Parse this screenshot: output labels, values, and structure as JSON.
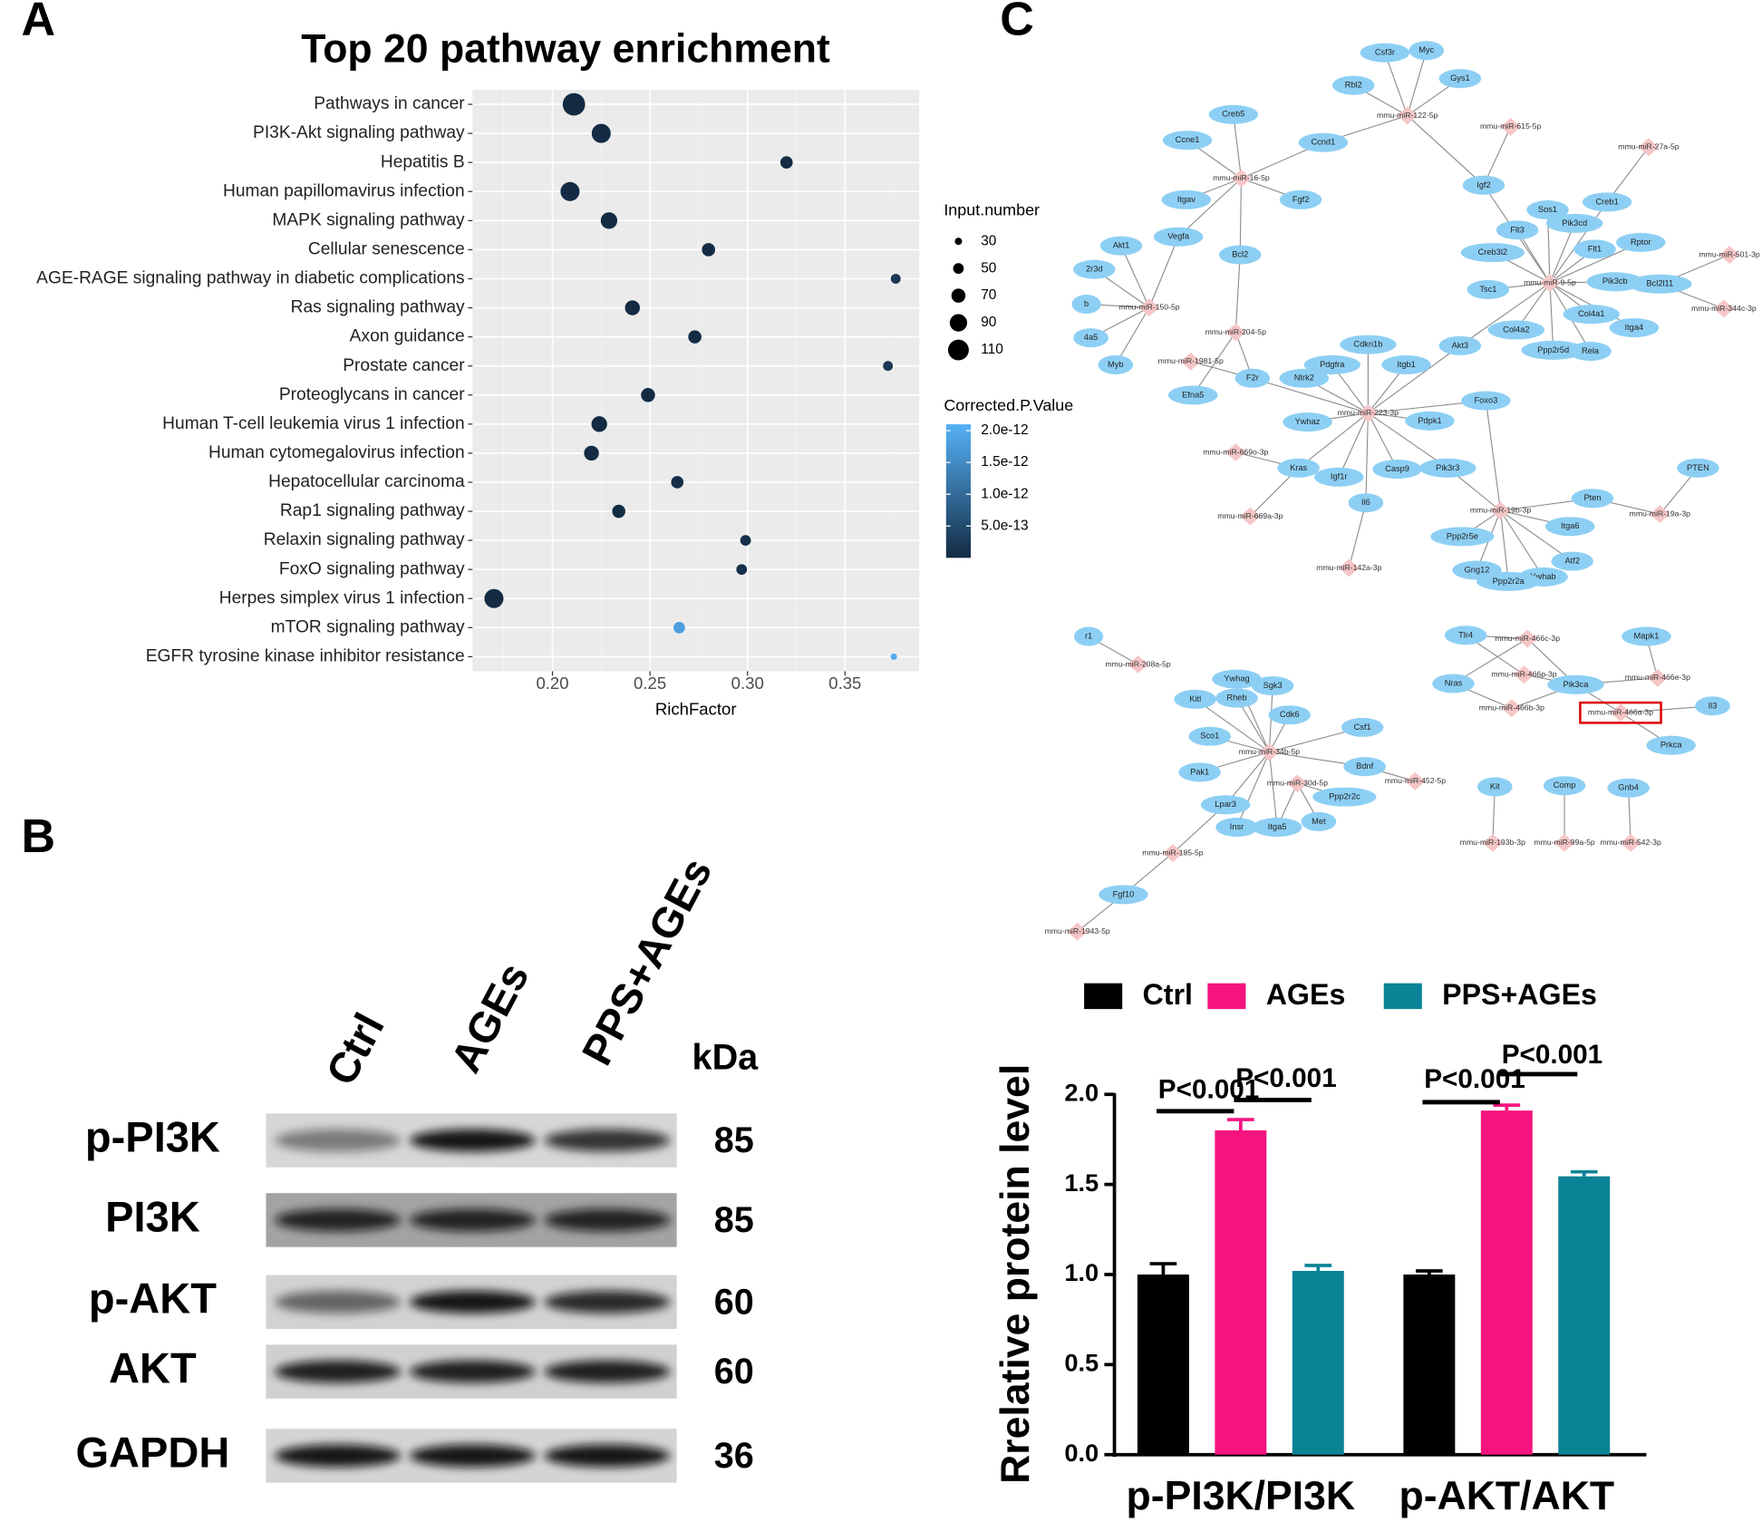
{
  "panel_labels": [
    "A",
    "B",
    "C"
  ],
  "chart_data": [
    {
      "type": "dot",
      "title": "Top 20 pathway enrichment",
      "categories": [
        "Pathways in cancer",
        "PI3K-Akt signaling pathway",
        "Hepatitis B",
        "Human papillomavirus infection",
        "MAPK signaling pathway",
        "Cellular senescence",
        "AGE-RAGE signaling pathway in diabetic complications",
        "Ras signaling pathway",
        "Axon guidance",
        "Prostate cancer",
        "Proteoglycans in cancer",
        "Human T-cell leukemia virus 1 infection",
        "Human cytomegalovirus infection",
        "Hepatocellular carcinoma",
        "Rap1 signaling pathway",
        "Relaxin signaling pathway",
        "FoxO signaling pathway",
        "Herpes simplex virus 1 infection",
        "mTOR signaling pathway",
        "EGFR tyrosine kinase inhibitor resistance"
      ],
      "values": [
        0.211,
        0.225,
        0.32,
        0.209,
        0.229,
        0.28,
        0.376,
        0.241,
        0.273,
        0.372,
        0.249,
        0.224,
        0.22,
        0.264,
        0.234,
        0.299,
        0.297,
        0.17,
        0.265,
        0.375
      ],
      "sizes": [
        120,
        100,
        60,
        100,
        85,
        65,
        45,
        75,
        65,
        45,
        70,
        80,
        75,
        60,
        65,
        50,
        50,
        100,
        55,
        25
      ],
      "color_values": [
        1e-20,
        1e-18,
        1e-16,
        1e-17,
        1e-16,
        1e-15,
        2e-13,
        1e-15,
        1e-14,
        2e-13,
        1e-14,
        1e-15,
        1e-15,
        5e-14,
        1e-14,
        8e-14,
        8e-14,
        1e-15,
        1.8e-12,
        2e-12
      ],
      "x_label": "RichFactor",
      "xlim": [
        0.159,
        0.388
      ],
      "xticks": [
        {
          "value": 0.2,
          "label": "0.20"
        },
        0.25,
        {
          "value": 0.3,
          "label": "0.30"
        },
        0.35
      ],
      "grid": true,
      "size_legend": {
        "title": "Input.number",
        "values": [
          30,
          50,
          70,
          90,
          110
        ]
      },
      "color_legend": {
        "title": "Corrected.P.Value",
        "lim": [
          0,
          2.1e-12
        ],
        "ticks": [
          {
            "value": 5e-13,
            "label": "5.0e-13"
          },
          {
            "value": 1e-12,
            "label": "1.0e-12"
          },
          {
            "value": 1.5e-12,
            "label": "1.5e-12"
          },
          {
            "value": 2e-12,
            "label": "2.0e-12"
          }
        ],
        "colors": [
          "#132b43",
          "#56b1f7"
        ]
      }
    },
    {
      "type": "bar",
      "y_label": "Rrelative protein level",
      "categories": [
        "p-PI3K/PI3K",
        "p-AKT/AKT"
      ],
      "series": [
        {
          "name": "Ctrl",
          "color": "#000000",
          "values": [
            1.0,
            1.0
          ],
          "errors": [
            0.06,
            0.02
          ]
        },
        {
          "name": "AGEs",
          "color": "#f5147f",
          "values": [
            1.8,
            1.91
          ],
          "errors": [
            0.06,
            0.03
          ]
        },
        {
          "name": "PPS+AGEs",
          "color": "#0b8396",
          "values": [
            1.02,
            1.545
          ],
          "errors": [
            0.03,
            0.025
          ]
        }
      ],
      "ylim": [
        0,
        2.0
      ],
      "yticks": [
        {
          "value": 0,
          "label": "0.0"
        },
        0.5,
        {
          "value": 1,
          "label": "1.0"
        },
        1.5,
        {
          "value": 2,
          "label": "2.0"
        }
      ],
      "annotations": [
        "P<0.001",
        "P<0.001",
        "P<0.001",
        "P<0.001"
      ]
    }
  ],
  "western_blot": {
    "lanes": [
      "Ctrl",
      "AGEs",
      "PPS+AGEs"
    ],
    "unit": "kDa",
    "rows": [
      {
        "label": "p-PI3K",
        "kda": 85
      },
      {
        "label": "PI3K",
        "kda": 85
      },
      {
        "label": "p-AKT",
        "kda": 60
      },
      {
        "label": "AKT",
        "kda": 60
      },
      {
        "label": "GAPDH",
        "kda": 36
      }
    ]
  },
  "network": {
    "nodes": [
      "Csf3r",
      "Myc",
      "Rbl2",
      "Gys1",
      "mmu-miR-122-5p",
      "mmu-miR-615-5p",
      "mmu-miR-27a-5p",
      "Creb5",
      "Ccne1",
      "Ccnd1",
      "mmu-miR-16-5p",
      "Itgav",
      "Fgf2",
      "Igf2",
      "Creb1",
      "Sos1",
      "Pik3cd",
      "Flt3",
      "Vegfa",
      "Bcl2",
      "Flt1",
      "Rptor",
      "mmu-miR-501-3p",
      "Akt1",
      "Creb3l2",
      "2r3d",
      "mmu-miR-9-5p",
      "Pik3cb",
      "Bcl2l11",
      "Tsc1",
      "mmu-miR-150-5p",
      "b",
      "mmu-miR-344c-3p",
      "Col4a1",
      "Itga4",
      "4a5",
      "mmu-miR-204-5p",
      "Cdkn1b",
      "Akt3",
      "Col4a2",
      "mmu-miR-1981-5p",
      "Myb",
      "Pdgfra",
      "Itgb1",
      "Ppp2r5d",
      "Rela",
      "F2r",
      "Ntrk2",
      "Efna5",
      "Foxo3",
      "mmu-miR-223-3p",
      "Ywhaz",
      "Pdpk1",
      "mmu-miR-669o-3p",
      "Kras",
      "Igf1r",
      "Casp9",
      "Pik3r3",
      "PTEN",
      "Il6",
      "Pten",
      "mmu-miR-19b-3p",
      "mmu-miR-669a-3p",
      "mmu-miR-19a-3p",
      "Itga6",
      "Ppp2r5e",
      "Atf2",
      "Gng12",
      "Ywhab",
      "Ppp2r2a",
      "mmu-miR-142a-3p",
      "r1",
      "mmu-miR-208a-5p",
      "Ywhag",
      "Sgk3",
      "Kitl",
      "Rheb",
      "Cdk6",
      "Csf1",
      "Sco1",
      "mmu-miR-34b-5p",
      "Pak1",
      "Bdnf",
      "mmu-miR-30d-5p",
      "mmu-miR-452-5p",
      "Ppp2r2c",
      "Lpar3",
      "Insr",
      "Itga5",
      "Met",
      "mmu-miR-185-5p",
      "Fgf10",
      "mmu-miR-1943-5p",
      "Tlr4",
      "mmu-miR-466c-3p",
      "Mapk1",
      "mmu-miR-466p-3p",
      "Nras",
      "Pik3ca",
      "mmu-miR-466e-3p",
      "mmu-miR-466b-3p",
      "mmu-miR-466a-3p",
      "Il3",
      "Prkca",
      "Kit",
      "Comp",
      "Gnb4",
      "mmu-miR-193b-3p",
      "mmu-miR-99a-5p",
      "mmu-miR-542-3p"
    ]
  }
}
